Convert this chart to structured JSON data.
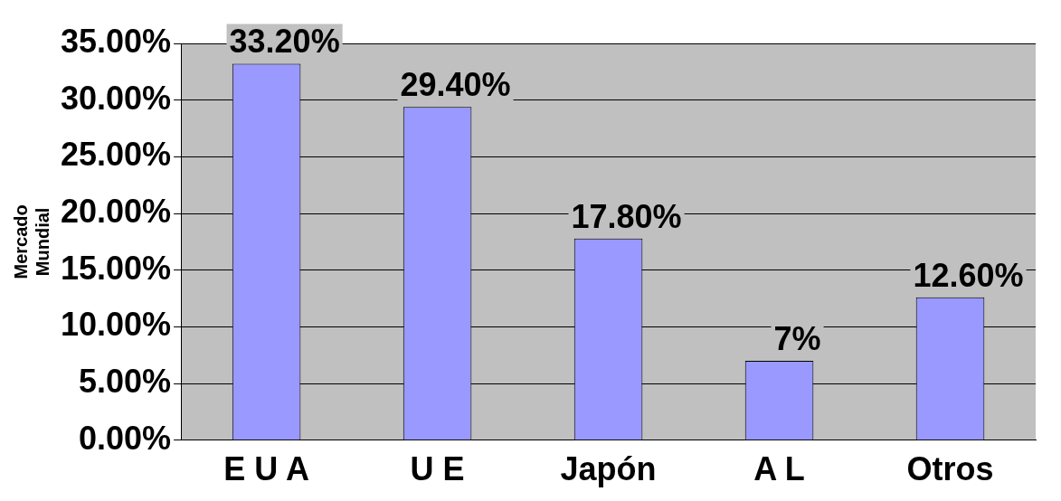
{
  "chart_data": {
    "type": "bar",
    "ylabel": "Mercado Mundial",
    "categories": [
      "E U A",
      "U E",
      "Japón",
      "A L",
      "Otros"
    ],
    "values": [
      33.2,
      29.4,
      17.8,
      7,
      12.6
    ],
    "value_labels": [
      "33.20%",
      "29.40%",
      "17.80%",
      "7%",
      "12.60%"
    ],
    "color": "#9999ff",
    "ylim": [
      0,
      35
    ],
    "yticks": [
      {
        "value": 0,
        "label": "0.00%"
      },
      {
        "value": 5,
        "label": "5.00%"
      },
      {
        "value": 10,
        "label": "10.00%"
      },
      {
        "value": 15,
        "label": "15.00%"
      },
      {
        "value": 20,
        "label": "20.00%"
      },
      {
        "value": 25,
        "label": "25.00%"
      },
      {
        "value": 30,
        "label": "30.00%"
      },
      {
        "value": 35,
        "label": "35.00%"
      }
    ],
    "grid": "y"
  }
}
